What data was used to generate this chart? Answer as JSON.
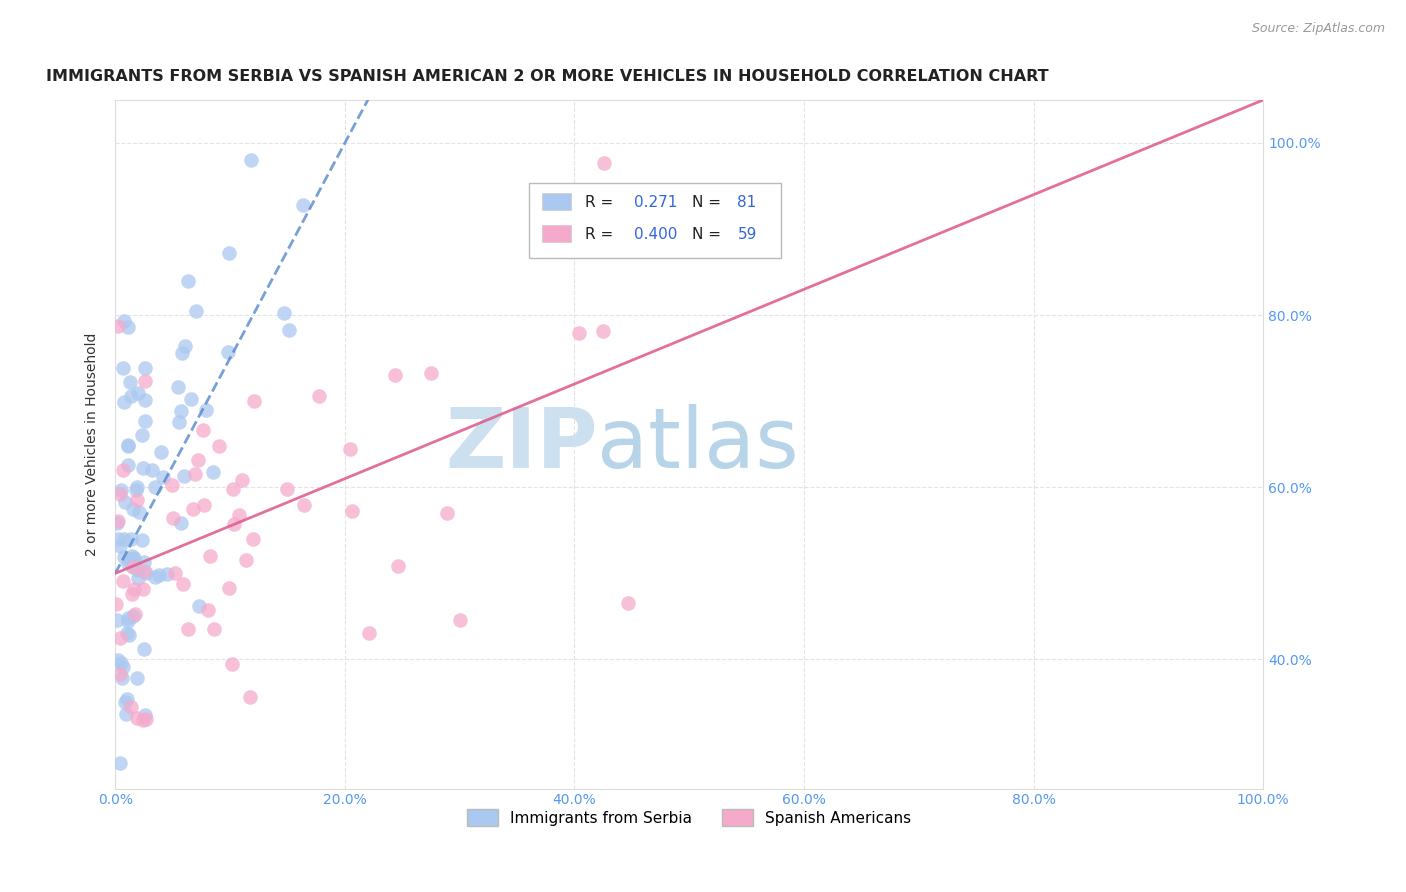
{
  "title": "IMMIGRANTS FROM SERBIA VS SPANISH AMERICAN 2 OR MORE VEHICLES IN HOUSEHOLD CORRELATION CHART",
  "source": "Source: ZipAtlas.com",
  "ylabel": "2 or more Vehicles in Household",
  "xlim": [
    0,
    1.0
  ],
  "ylim": [
    0.25,
    1.05
  ],
  "xtick_labels": [
    "0.0%",
    "20.0%",
    "40.0%",
    "60.0%",
    "80.0%",
    "100.0%"
  ],
  "ytick_labels": [
    "40.0%",
    "60.0%",
    "80.0%",
    "100.0%"
  ],
  "ytick_vals": [
    0.4,
    0.6,
    0.8,
    1.0
  ],
  "xtick_vals": [
    0.0,
    0.2,
    0.4,
    0.6,
    0.8,
    1.0
  ],
  "series": [
    {
      "name": "Immigrants from Serbia",
      "R": 0.271,
      "N": 81,
      "color": "#aac8f0",
      "line_color": "#5588cc",
      "line_style": "--"
    },
    {
      "name": "Spanish Americans",
      "R": 0.4,
      "N": 59,
      "color": "#f5aacc",
      "line_color": "#e06090",
      "line_style": "-"
    }
  ],
  "watermark_zip": "ZIP",
  "watermark_atlas": "atlas",
  "watermark_color_zip": "#c8dff0",
  "watermark_color_atlas": "#b0d0e8",
  "background_color": "#ffffff",
  "grid_color": "#e0e0e0",
  "title_fontsize": 11.5,
  "axis_label_fontsize": 10
}
